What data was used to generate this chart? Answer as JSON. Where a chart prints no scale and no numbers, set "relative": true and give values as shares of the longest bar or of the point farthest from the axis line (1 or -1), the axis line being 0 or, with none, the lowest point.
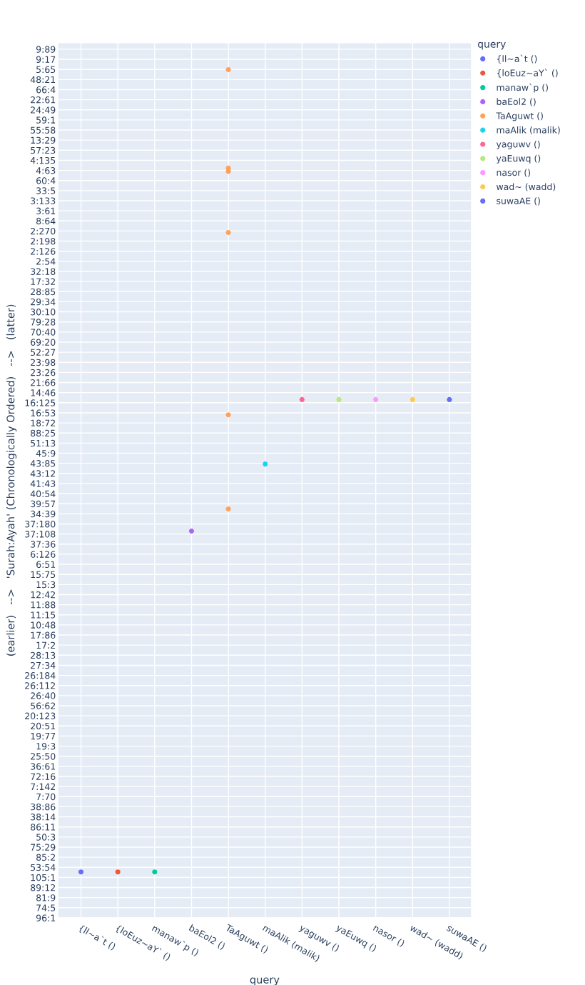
{
  "chart_data": {
    "type": "scatter",
    "relative": true,
    "xlabel": "query",
    "ylabel": "(earlier)   -->   'Surah:Ayah' (Chronologically Ordered)   -->   (latter)",
    "legend_title": "query",
    "categories": [
      "{ll~a`t ()",
      "{loEuz~aY` ()",
      "manaw`p ()",
      "baEol2 ()",
      "TaAguwt ()",
      "maAlik (malik)",
      "yaguwv ()",
      "yaEuwq ()",
      "nasor ()",
      "wad~ (wadd)",
      "suwaAE ()"
    ],
    "y_categories": [
      "9:89",
      "9:17",
      "5:65",
      "48:21",
      "66:4",
      "22:61",
      "24:49",
      "59:1",
      "55:58",
      "13:29",
      "57:23",
      "4:135",
      "4:63",
      "60:4",
      "33:5",
      "3:133",
      "3:61",
      "8:64",
      "2:270",
      "2:198",
      "2:126",
      "2:54",
      "32:18",
      "17:32",
      "28:85",
      "29:34",
      "30:10",
      "79:28",
      "70:40",
      "69:20",
      "52:27",
      "23:98",
      "23:26",
      "21:66",
      "14:46",
      "16:125",
      "16:53",
      "18:72",
      "88:25",
      "51:13",
      "45:9",
      "43:85",
      "43:12",
      "41:43",
      "40:54",
      "39:57",
      "34:39",
      "37:180",
      "37:108",
      "37:36",
      "6:126",
      "6:51",
      "15:75",
      "15:3",
      "12:42",
      "11:88",
      "11:15",
      "10:48",
      "17:86",
      "17:2",
      "28:13",
      "27:34",
      "26:184",
      "26:112",
      "26:40",
      "56:62",
      "20:123",
      "20:51",
      "19:77",
      "19:3",
      "25:50",
      "36:61",
      "72:16",
      "7:142",
      "7:70",
      "38:86",
      "38:14",
      "86:11",
      "50:3",
      "75:29",
      "85:2",
      "53:54",
      "105:1",
      "89:12",
      "81:9",
      "74:5",
      "96:1"
    ],
    "series": [
      {
        "name": "{ll~a`t ()",
        "color": "#636efa",
        "x": [
          "{ll~a`t ()"
        ],
        "values": [
          0.054
        ]
      },
      {
        "name": "{loEuz~aY` ()",
        "color": "#ef553b",
        "x": [
          "{loEuz~aY` ()"
        ],
        "values": [
          0.054
        ]
      },
      {
        "name": "manaw`p ()",
        "color": "#00cc96",
        "x": [
          "manaw`p ()"
        ],
        "values": [
          0.054
        ]
      },
      {
        "name": "baEol2 ()",
        "color": "#ab63fa",
        "x": [
          "baEol2 ()"
        ],
        "values": [
          0.456
        ]
      },
      {
        "name": "TaAguwt ()",
        "color": "#ffa15a",
        "x": [
          "TaAguwt ()",
          "TaAguwt ()",
          "TaAguwt ()",
          "TaAguwt ()",
          "TaAguwt ()",
          "TaAguwt ()"
        ],
        "values": [
          1,
          0.884,
          0.88,
          0.808,
          0.593,
          0.482
        ]
      },
      {
        "name": "maAlik (malik)",
        "color": "#19d3f3",
        "x": [
          "maAlik (malik)"
        ],
        "values": [
          0.535
        ]
      },
      {
        "name": "yaguwv ()",
        "color": "#ff6692",
        "x": [
          "yaguwv ()"
        ],
        "values": [
          0.611
        ]
      },
      {
        "name": "yaEuwq ()",
        "color": "#b6e880",
        "x": [
          "yaEuwq ()"
        ],
        "values": [
          0.611
        ]
      },
      {
        "name": "nasor ()",
        "color": "#ff97ff",
        "x": [
          "nasor ()"
        ],
        "values": [
          0.611
        ]
      },
      {
        "name": "wad~ (wadd)",
        "color": "#fecb52",
        "x": [
          "wad~ (wadd)"
        ],
        "values": [
          0.611
        ]
      },
      {
        "name": "suwaAE ()",
        "color": "#636efa",
        "x": [
          "suwaAE ()"
        ],
        "values": [
          0.611
        ]
      }
    ],
    "grid": true,
    "legend": "right",
    "marker": "circle"
  }
}
